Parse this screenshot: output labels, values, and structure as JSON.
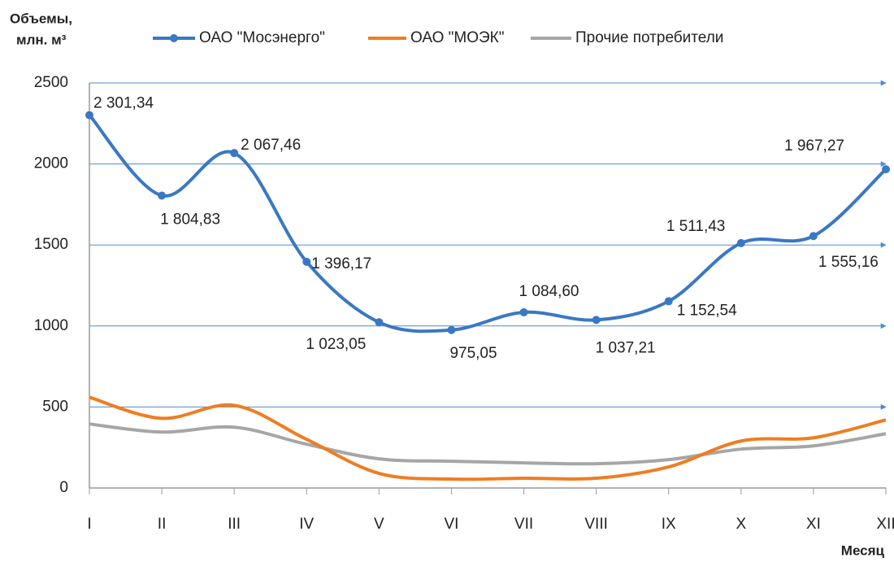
{
  "chart_data": {
    "type": "line",
    "y_label": [
      "Объемы,",
      "млн. м³"
    ],
    "x_label": "Месяц",
    "categories": [
      "I",
      "II",
      "III",
      "IV",
      "V",
      "VI",
      "VII",
      "VIII",
      "IX",
      "X",
      "XI",
      "XII"
    ],
    "series": [
      {
        "name": "ОАО \"Мосэнерго\"",
        "color": "#3a78c3",
        "markers": true,
        "values": [
          2301.34,
          1804.83,
          2067.46,
          1396.17,
          1023.05,
          975.05,
          1084.6,
          1037.21,
          1152.54,
          1511.43,
          1555.16,
          1967.27
        ],
        "value_labels": [
          "2 301,34",
          "1 804,83",
          "2 067,46",
          "1 396,17",
          "1 023,05",
          "975,05",
          "1 084,60",
          "1 037,21",
          "1 152,54",
          "1 511,43",
          "1 555,16",
          "1 967,27"
        ]
      },
      {
        "name": "ОАО \"МОЭК\"",
        "color": "#ef7d22",
        "markers": false,
        "values": [
          560,
          430,
          510,
          300,
          90,
          55,
          60,
          60,
          130,
          290,
          310,
          420
        ]
      },
      {
        "name": "Прочие потребители",
        "color": "#a6a6a6",
        "markers": false,
        "values": [
          395,
          345,
          375,
          270,
          180,
          165,
          155,
          150,
          175,
          240,
          260,
          335
        ]
      }
    ],
    "ylim": [
      0,
      2500
    ],
    "yticks": [
      0,
      500,
      1000,
      1500,
      2000,
      2500
    ],
    "grid": true
  }
}
